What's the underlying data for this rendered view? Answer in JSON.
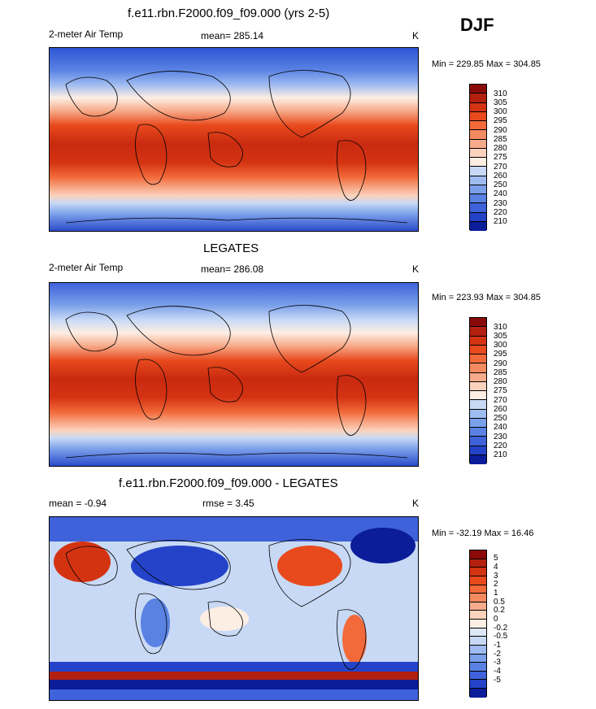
{
  "season": "DJF",
  "panels": [
    {
      "title": "f.e11.rbn.F2000.f09_f09.000 (yrs 2-5)",
      "left_label": "2-meter Air Temp",
      "center_label": "mean= 285.14",
      "units": "K",
      "minmax": "Min = 229.85 Max = 304.85",
      "colorbar": {
        "labels": [
          "310",
          "305",
          "300",
          "295",
          "290",
          "285",
          "280",
          "275",
          "270",
          "260",
          "250",
          "240",
          "230",
          "220",
          "210"
        ],
        "colors": [
          "#8a0a0a",
          "#b3200f",
          "#d43312",
          "#e84a1d",
          "#f26a3a",
          "#f48a60",
          "#f7ab8a",
          "#fbd2bc",
          "#fdeee4",
          "#c8d9f5",
          "#9fbcf0",
          "#7aa0ea",
          "#5a82e3",
          "#3f62da",
          "#2443c8",
          "#0c1d9a"
        ]
      }
    },
    {
      "title": "LEGATES",
      "left_label": "2-meter Air Temp",
      "center_label": "mean= 286.08",
      "units": "K",
      "minmax": "Min = 223.93 Max = 304.85",
      "colorbar": {
        "labels": [
          "310",
          "305",
          "300",
          "295",
          "290",
          "285",
          "280",
          "275",
          "270",
          "260",
          "250",
          "240",
          "230",
          "220",
          "210"
        ],
        "colors": [
          "#8a0a0a",
          "#b3200f",
          "#d43312",
          "#e84a1d",
          "#f26a3a",
          "#f48a60",
          "#f7ab8a",
          "#fbd2bc",
          "#fdeee4",
          "#c8d9f5",
          "#9fbcf0",
          "#7aa0ea",
          "#5a82e3",
          "#3f62da",
          "#2443c8",
          "#0c1d9a"
        ]
      }
    },
    {
      "title": "f.e11.rbn.F2000.f09_f09.000 - LEGATES",
      "left_label": "mean =  -0.94",
      "center_label": "rmse =   3.45",
      "units": "K",
      "minmax": "Min = -32.19 Max =  16.46",
      "colorbar": {
        "labels": [
          "5",
          "4",
          "3",
          "2",
          "1",
          "0.5",
          "0.2",
          "0",
          "-0.2",
          "-0.5",
          "-1",
          "-2",
          "-3",
          "-4",
          "-5"
        ],
        "colors": [
          "#8a0a0a",
          "#b3200f",
          "#d43312",
          "#e84a1d",
          "#f26a3a",
          "#f48a60",
          "#f7ab8a",
          "#fbd2bc",
          "#fdeee4",
          "#dde7f8",
          "#c8d9f5",
          "#9fbcf0",
          "#7aa0ea",
          "#5a82e3",
          "#3f62da",
          "#2443c8",
          "#0c1d9a"
        ]
      }
    }
  ]
}
